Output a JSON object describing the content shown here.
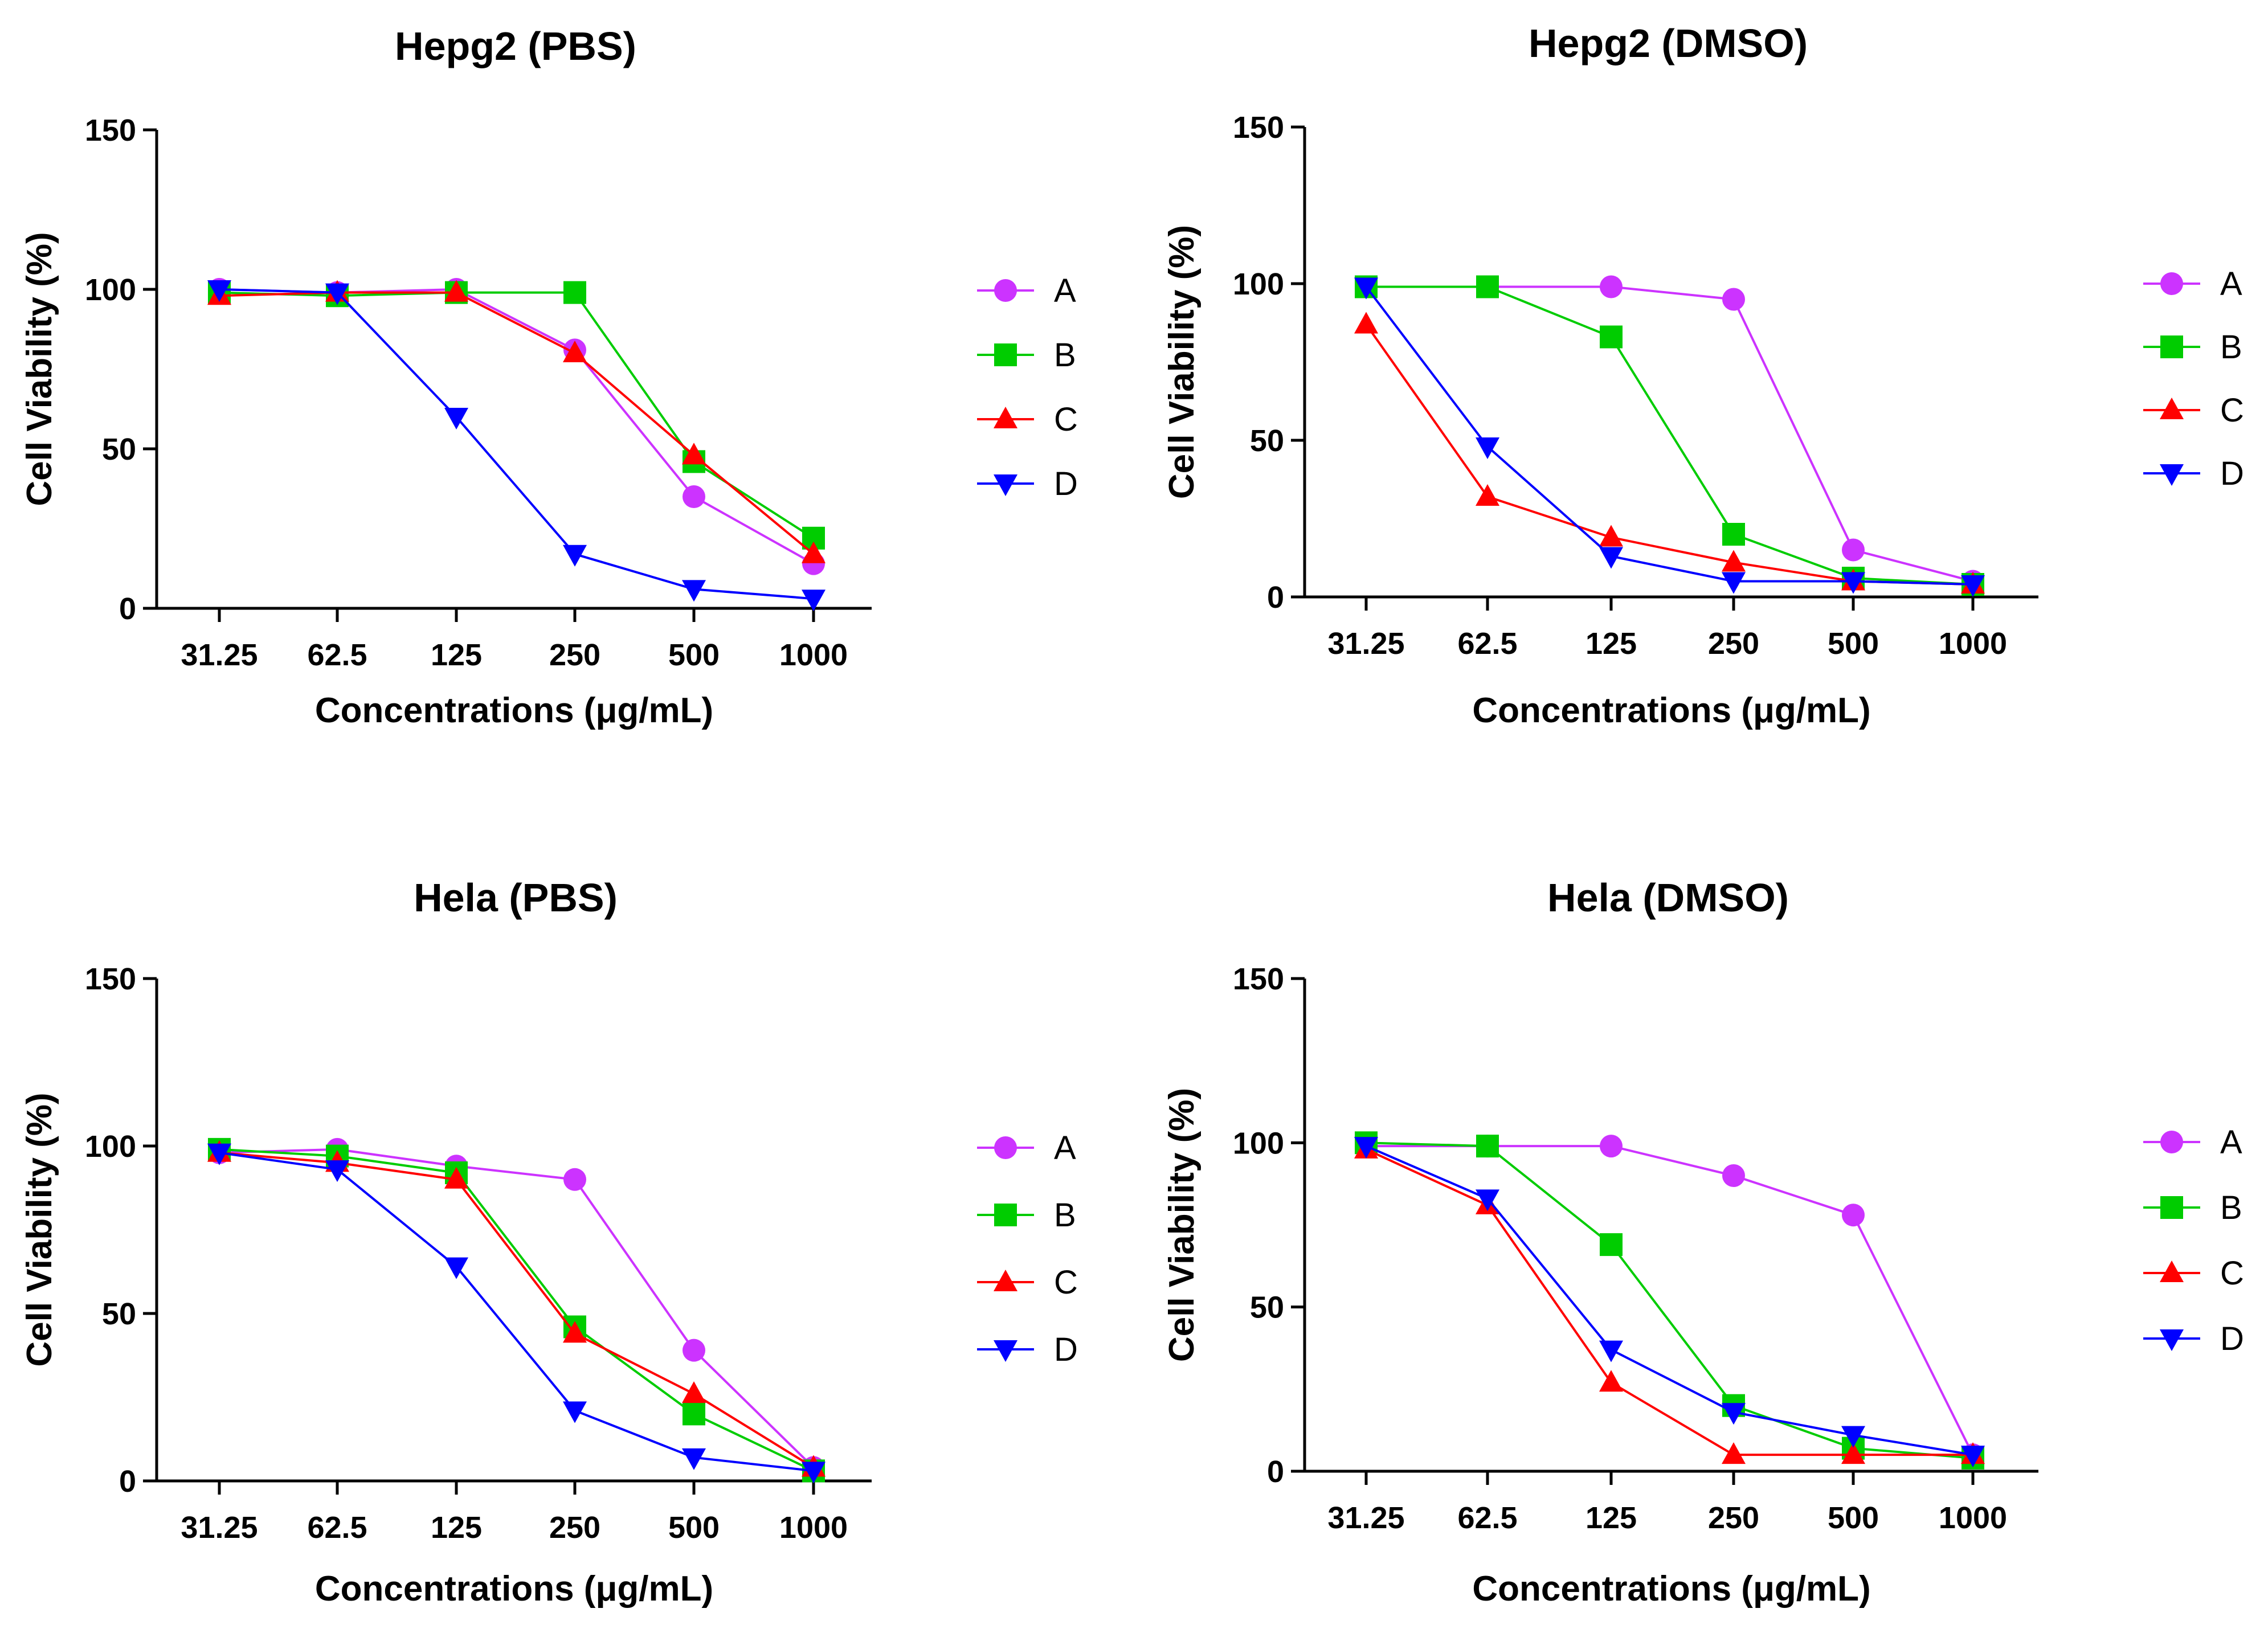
{
  "colors": {
    "A": "#cc33ff",
    "B": "#00cc00",
    "C": "#ff0000",
    "D": "#0000ff"
  },
  "chart_data": [
    {
      "type": "line",
      "title": "Hepg2 (PBS)",
      "xlabel": "Concentrations (μg/mL)",
      "ylabel": "Cell Viability (%)",
      "categories": [
        "31.25",
        "62.5",
        "125",
        "250",
        "500",
        "1000"
      ],
      "ylim": [
        0,
        150
      ],
      "yticks": [
        "0",
        "50",
        "100",
        "150"
      ],
      "series": [
        {
          "name": "A",
          "marker": "circle",
          "values": [
            100,
            99,
            100,
            81,
            35,
            14
          ]
        },
        {
          "name": "B",
          "marker": "square",
          "values": [
            99,
            98,
            99,
            99,
            46,
            22
          ]
        },
        {
          "name": "C",
          "marker": "triangle-up",
          "values": [
            98,
            99,
            99,
            80,
            48,
            17
          ]
        },
        {
          "name": "D",
          "marker": "triangle-down",
          "values": [
            100,
            99,
            60,
            17,
            6,
            3
          ]
        }
      ]
    },
    {
      "type": "line",
      "title": "Hepg2 (DMSO)",
      "xlabel": "Concentrations (μg/mL)",
      "ylabel": "Cell Viability (%)",
      "categories": [
        "31.25",
        "62.5",
        "125",
        "250",
        "500",
        "1000"
      ],
      "ylim": [
        0,
        150
      ],
      "yticks": [
        "0",
        "50",
        "100",
        "150"
      ],
      "series": [
        {
          "name": "A",
          "marker": "circle",
          "values": [
            99,
            99,
            99,
            95,
            15,
            5
          ]
        },
        {
          "name": "B",
          "marker": "square",
          "values": [
            99,
            99,
            83,
            20,
            6,
            4
          ]
        },
        {
          "name": "C",
          "marker": "triangle-up",
          "values": [
            87,
            32,
            19,
            11,
            5,
            4
          ]
        },
        {
          "name": "D",
          "marker": "triangle-down",
          "values": [
            99,
            48,
            13,
            5,
            5,
            4
          ]
        }
      ]
    },
    {
      "type": "line",
      "title": "Hela (PBS)",
      "xlabel": "Concentrations (μg/mL)",
      "ylabel": "Cell Viability (%)",
      "categories": [
        "31.25",
        "62.5",
        "125",
        "250",
        "500",
        "1000"
      ],
      "ylim": [
        0,
        150
      ],
      "yticks": [
        "0",
        "50",
        "100",
        "150"
      ],
      "series": [
        {
          "name": "A",
          "marker": "circle",
          "values": [
            98,
            99,
            94,
            90,
            39,
            4
          ]
        },
        {
          "name": "B",
          "marker": "square",
          "values": [
            99,
            97,
            92,
            46,
            20,
            3
          ]
        },
        {
          "name": "C",
          "marker": "triangle-up",
          "values": [
            98,
            95,
            90,
            44,
            26,
            4
          ]
        },
        {
          "name": "D",
          "marker": "triangle-down",
          "values": [
            98,
            93,
            64,
            21,
            7,
            3
          ]
        }
      ]
    },
    {
      "type": "line",
      "title": "Hela (DMSO)",
      "xlabel": "Concentrations (μg/mL)",
      "ylabel": "Cell Viability (%)",
      "categories": [
        "31.25",
        "62.5",
        "125",
        "250",
        "500",
        "1000"
      ],
      "ylim": [
        0,
        150
      ],
      "yticks": [
        "0",
        "50",
        "100",
        "150"
      ],
      "series": [
        {
          "name": "A",
          "marker": "circle",
          "values": [
            99,
            99,
            99,
            90,
            78,
            5
          ]
        },
        {
          "name": "B",
          "marker": "square",
          "values": [
            100,
            99,
            69,
            20,
            7,
            4
          ]
        },
        {
          "name": "C",
          "marker": "triangle-up",
          "values": [
            98,
            81,
            27,
            5,
            5,
            5
          ]
        },
        {
          "name": "D",
          "marker": "triangle-down",
          "values": [
            99,
            83,
            37,
            18,
            11,
            5
          ]
        }
      ]
    }
  ]
}
